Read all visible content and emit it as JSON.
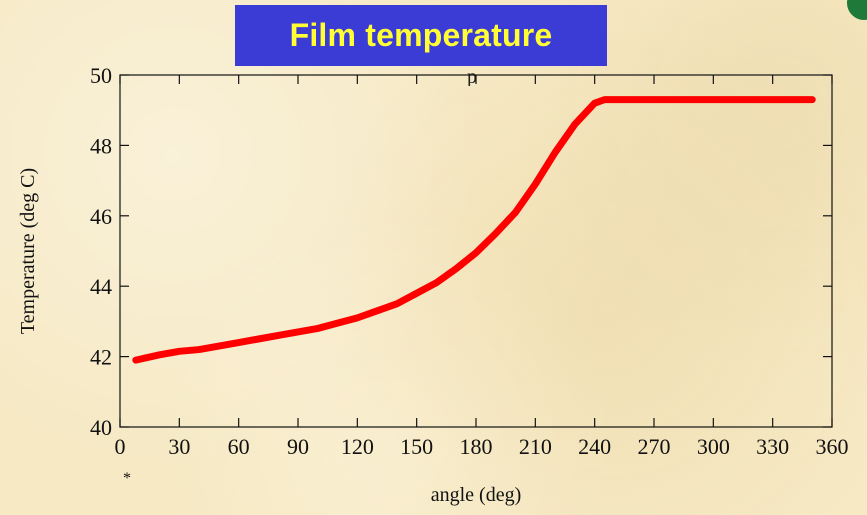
{
  "header": {
    "title": "Film temperature",
    "title_bg": "#3b3bd6",
    "title_color": "#ffff33"
  },
  "partial_text": "p",
  "footnote_mark": "*",
  "chart_data": {
    "type": "line",
    "xlabel": "angle (deg)",
    "ylabel": "Temperature  (deg C)",
    "xlim": [
      0,
      360
    ],
    "ylim": [
      40,
      50
    ],
    "xticks": [
      0,
      30,
      60,
      90,
      120,
      150,
      180,
      210,
      240,
      270,
      300,
      330,
      360
    ],
    "yticks": [
      40,
      42,
      44,
      46,
      48,
      50
    ],
    "grid": false,
    "series": [
      {
        "color": "#ff0000",
        "x": [
          8,
          20,
          30,
          40,
          50,
          60,
          70,
          80,
          90,
          100,
          110,
          120,
          130,
          140,
          150,
          160,
          170,
          180,
          190,
          200,
          210,
          220,
          230,
          240,
          245,
          250,
          260,
          270,
          280,
          290,
          300,
          310,
          320,
          330,
          340,
          350
        ],
        "y": [
          41.9,
          42.05,
          42.15,
          42.2,
          42.3,
          42.4,
          42.5,
          42.6,
          42.7,
          42.8,
          42.95,
          43.1,
          43.3,
          43.5,
          43.8,
          44.1,
          44.5,
          44.95,
          45.5,
          46.1,
          46.9,
          47.8,
          48.6,
          49.2,
          49.3,
          49.3,
          49.3,
          49.3,
          49.3,
          49.3,
          49.3,
          49.3,
          49.3,
          49.3,
          49.3,
          49.3
        ]
      }
    ]
  }
}
